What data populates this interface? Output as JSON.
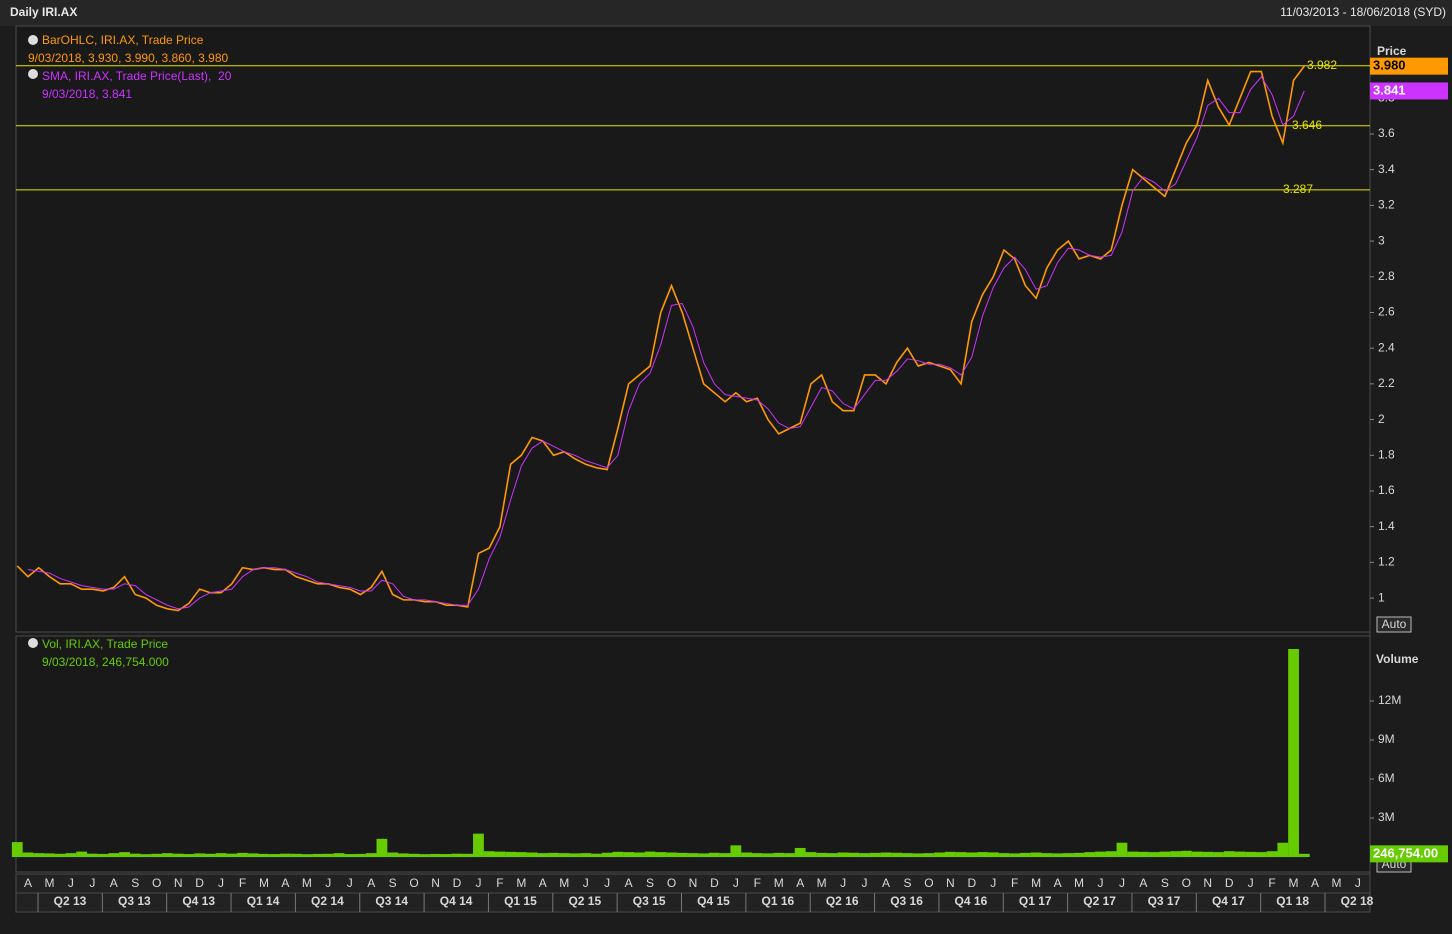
{
  "header": {
    "title": "Daily IRI.AX",
    "range": "11/03/2013 - 18/06/2018 (SYD)"
  },
  "chart_data": {
    "type": "line",
    "categories": [
      null,
      "A",
      null,
      "M",
      null,
      "J",
      null,
      "J",
      null,
      "A",
      null,
      "S",
      null,
      "O",
      null,
      "N",
      null,
      "D",
      null,
      "J",
      null,
      "F",
      null,
      "M",
      null,
      "A",
      null,
      "M",
      null,
      "J",
      null,
      "J",
      null,
      "A",
      null,
      "S",
      null,
      "O",
      null,
      "N",
      null,
      "D",
      null,
      "J",
      null,
      "F",
      null,
      "M",
      null,
      "A",
      null,
      "M",
      null,
      "J",
      null,
      "J",
      null,
      "A",
      null,
      "S",
      null,
      "O",
      null,
      "N",
      null,
      "D",
      null,
      "J",
      null,
      "F",
      null,
      "M",
      null,
      "A",
      null,
      "M",
      null,
      "J",
      null,
      "J",
      null,
      "A",
      null,
      "S",
      null,
      "O",
      null,
      "N",
      null,
      "D",
      null,
      "J",
      null,
      "F",
      null,
      "M",
      null,
      "A",
      null,
      "M",
      null,
      "J",
      null,
      "J",
      null,
      "A",
      null,
      "S",
      null,
      "O",
      null,
      "N",
      null,
      "D",
      null,
      "J",
      null,
      "F",
      null,
      "M",
      null,
      "A",
      null,
      "M",
      null,
      "J"
    ],
    "quarters": [
      "Q2 13",
      "Q3 13",
      "Q4 13",
      "Q1 14",
      "Q2 14",
      "Q3 14",
      "Q4 14",
      "Q1 15",
      "Q2 15",
      "Q3 15",
      "Q4 15",
      "Q1 16",
      "Q2 16",
      "Q3 16",
      "Q4 16",
      "Q1 17",
      "Q2 17",
      "Q3 17",
      "Q4 17",
      "Q1 18",
      "Q2 18"
    ],
    "y_title": "Price",
    "y2_title": "Volume",
    "scale_button": "Auto",
    "ylim": [
      0.81,
      4.205
    ],
    "yticks": [
      1,
      1.2,
      1.4,
      1.6,
      1.8,
      2,
      2.2,
      2.4,
      2.6,
      2.8,
      3,
      3.2,
      3.4,
      3.6,
      3.8
    ],
    "y2lim": [
      -1150000,
      17000000
    ],
    "y2ticks": [
      {
        "value": 3000000,
        "label": "3M"
      },
      {
        "value": 6000000,
        "label": "6M"
      },
      {
        "value": 9000000,
        "label": "9M"
      },
      {
        "value": 12000000,
        "label": "12M"
      }
    ],
    "hlines": [
      3.982,
      3.646,
      3.287
    ],
    "hline_color": "#e6e600",
    "series": [
      {
        "name": "BarOHLC, IRI.AX, Trade Price",
        "detail": "9/03/2018, 3.930, 3.990, 3.860, 3.980",
        "badge": "3.980",
        "color": "#ff9900",
        "values": [
          1.18,
          1.12,
          1.17,
          1.12,
          1.08,
          1.08,
          1.05,
          1.05,
          1.04,
          1.06,
          1.12,
          1.02,
          1.0,
          0.96,
          0.94,
          0.93,
          0.97,
          1.05,
          1.03,
          1.03,
          1.08,
          1.17,
          1.16,
          1.17,
          1.16,
          1.16,
          1.12,
          1.1,
          1.08,
          1.08,
          1.06,
          1.05,
          1.02,
          1.06,
          1.15,
          1.02,
          0.99,
          0.99,
          0.98,
          0.98,
          0.96,
          0.96,
          0.95,
          1.25,
          1.28,
          1.4,
          1.75,
          1.8,
          1.9,
          1.88,
          1.8,
          1.82,
          1.78,
          1.75,
          1.73,
          1.72,
          1.95,
          2.2,
          2.25,
          2.3,
          2.6,
          2.75,
          2.6,
          2.4,
          2.2,
          2.15,
          2.1,
          2.15,
          2.1,
          2.12,
          2.0,
          1.92,
          1.95,
          1.98,
          2.2,
          2.25,
          2.1,
          2.05,
          2.05,
          2.25,
          2.25,
          2.2,
          2.32,
          2.4,
          2.3,
          2.32,
          2.3,
          2.28,
          2.2,
          2.55,
          2.7,
          2.8,
          2.95,
          2.9,
          2.75,
          2.68,
          2.85,
          2.95,
          3.0,
          2.9,
          2.92,
          2.9,
          2.95,
          3.2,
          3.4,
          3.35,
          3.3,
          3.25,
          3.4,
          3.55,
          3.65,
          3.9,
          3.75,
          3.65,
          3.8,
          3.95,
          3.95,
          3.7,
          3.55,
          3.9,
          3.98,
          null,
          null,
          null,
          null,
          null
        ]
      },
      {
        "name": "SMA, IRI.AX, Trade Price(Last),  20",
        "detail": "9/03/2018, 3.841",
        "badge": "3.841",
        "color": "#cc33ff",
        "values": [
          null,
          1.16,
          1.15,
          1.14,
          1.11,
          1.09,
          1.07,
          1.06,
          1.05,
          1.05,
          1.08,
          1.07,
          1.02,
          0.99,
          0.96,
          0.94,
          0.95,
          1.0,
          1.03,
          1.04,
          1.05,
          1.12,
          1.16,
          1.17,
          1.17,
          1.16,
          1.14,
          1.12,
          1.09,
          1.08,
          1.07,
          1.06,
          1.04,
          1.04,
          1.1,
          1.08,
          1.01,
          0.99,
          0.99,
          0.98,
          0.97,
          0.96,
          0.96,
          1.05,
          1.22,
          1.34,
          1.55,
          1.74,
          1.84,
          1.88,
          1.85,
          1.82,
          1.8,
          1.77,
          1.75,
          1.73,
          1.8,
          2.05,
          2.2,
          2.26,
          2.42,
          2.64,
          2.65,
          2.52,
          2.32,
          2.2,
          2.14,
          2.13,
          2.12,
          2.11,
          2.06,
          1.98,
          1.95,
          1.96,
          2.07,
          2.18,
          2.16,
          2.09,
          2.06,
          2.14,
          2.22,
          2.22,
          2.27,
          2.34,
          2.33,
          2.31,
          2.31,
          2.29,
          2.25,
          2.35,
          2.58,
          2.74,
          2.85,
          2.91,
          2.84,
          2.73,
          2.75,
          2.88,
          2.96,
          2.95,
          2.92,
          2.91,
          2.92,
          3.05,
          3.28,
          3.36,
          3.33,
          3.28,
          3.32,
          3.45,
          3.58,
          3.76,
          3.8,
          3.72,
          3.72,
          3.85,
          3.92,
          3.82,
          3.65,
          3.7,
          3.841,
          null,
          null,
          null,
          null,
          null
        ]
      },
      {
        "name": "Vol, IRI.AX, Trade Price",
        "detail": "9/03/2018, 246,754.000",
        "badge": "246,754.00",
        "color": "#66cc00",
        "axis": "y2",
        "type": "bar",
        "values": [
          1150000,
          350000,
          300000,
          280000,
          250000,
          300000,
          420000,
          260000,
          240000,
          300000,
          380000,
          260000,
          220000,
          250000,
          300000,
          260000,
          230000,
          280000,
          250000,
          300000,
          260000,
          320000,
          280000,
          240000,
          230000,
          260000,
          250000,
          220000,
          240000,
          250000,
          300000,
          230000,
          240000,
          300000,
          1400000,
          350000,
          280000,
          250000,
          220000,
          240000,
          230000,
          260000,
          250000,
          1800000,
          450000,
          420000,
          400000,
          380000,
          350000,
          300000,
          320000,
          300000,
          280000,
          300000,
          260000,
          330000,
          400000,
          380000,
          350000,
          420000,
          380000,
          350000,
          320000,
          300000,
          280000,
          330000,
          300000,
          900000,
          350000,
          300000,
          280000,
          320000,
          300000,
          700000,
          380000,
          320000,
          300000,
          350000,
          330000,
          300000,
          320000,
          350000,
          330000,
          300000,
          280000,
          300000,
          350000,
          400000,
          380000,
          350000,
          380000,
          360000,
          300000,
          280000,
          320000,
          350000,
          300000,
          280000,
          300000,
          320000,
          380000,
          420000,
          450000,
          1100000,
          420000,
          400000,
          380000,
          420000,
          450000,
          480000,
          420000,
          400000,
          380000,
          450000,
          420000,
          400000,
          380000,
          450000,
          1100000,
          16000000,
          246754,
          null,
          null,
          null,
          null,
          null
        ]
      }
    ]
  }
}
